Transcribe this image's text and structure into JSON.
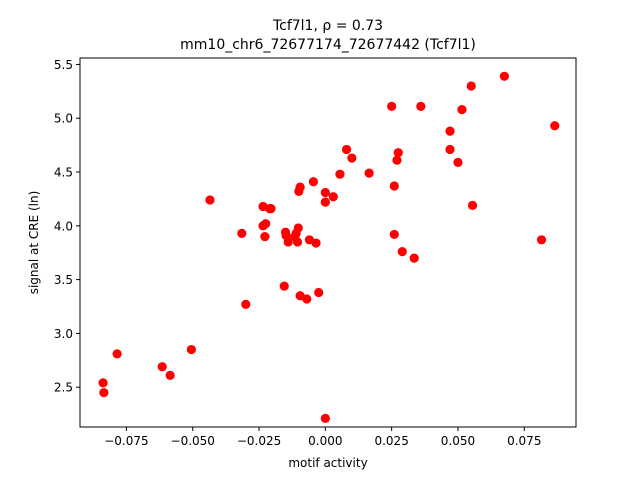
{
  "chart_data": {
    "type": "scatter",
    "title_line1": "Tcf7l1, ρ = 0.73",
    "title_line2": "mm10_chr6_72677174_72677442 (Tcf7l1)",
    "xlabel": "motif activity",
    "ylabel": "signal at CRE (ln)",
    "xlim": [
      -0.0925,
      0.0945
    ],
    "ylim": [
      2.13,
      5.56
    ],
    "xticks": [
      -0.075,
      -0.05,
      -0.025,
      0.0,
      0.025,
      0.05,
      0.075
    ],
    "xtick_labels": [
      "−0.075",
      "−0.050",
      "−0.025",
      "0.000",
      "0.025",
      "0.050",
      "0.075"
    ],
    "yticks": [
      2.5,
      3.0,
      3.5,
      4.0,
      4.5,
      5.0,
      5.5
    ],
    "ytick_labels": [
      "2.5",
      "3.0",
      "3.5",
      "4.0",
      "4.5",
      "5.0",
      "5.5"
    ],
    "marker_color": "#ff0000",
    "grid": false,
    "points": [
      {
        "x": -0.0838,
        "y": 2.54
      },
      {
        "x": -0.0835,
        "y": 2.45
      },
      {
        "x": -0.0785,
        "y": 2.81
      },
      {
        "x": -0.0615,
        "y": 2.69
      },
      {
        "x": -0.0585,
        "y": 2.61
      },
      {
        "x": -0.0505,
        "y": 2.85
      },
      {
        "x": -0.0435,
        "y": 4.24
      },
      {
        "x": -0.0315,
        "y": 3.93
      },
      {
        "x": -0.03,
        "y": 3.27
      },
      {
        "x": -0.0235,
        "y": 4.18
      },
      {
        "x": -0.0235,
        "y": 4.0
      },
      {
        "x": -0.0228,
        "y": 3.9
      },
      {
        "x": -0.0225,
        "y": 4.02
      },
      {
        "x": -0.021,
        "y": 4.16
      },
      {
        "x": -0.0205,
        "y": 4.16
      },
      {
        "x": -0.0155,
        "y": 3.44
      },
      {
        "x": -0.015,
        "y": 3.94
      },
      {
        "x": -0.0148,
        "y": 3.91
      },
      {
        "x": -0.014,
        "y": 3.85
      },
      {
        "x": -0.0115,
        "y": 3.9
      },
      {
        "x": -0.011,
        "y": 3.93
      },
      {
        "x": -0.0105,
        "y": 3.85
      },
      {
        "x": -0.0102,
        "y": 3.98
      },
      {
        "x": -0.01,
        "y": 4.32
      },
      {
        "x": -0.0095,
        "y": 4.36
      },
      {
        "x": -0.0095,
        "y": 3.35
      },
      {
        "x": -0.007,
        "y": 3.32
      },
      {
        "x": -0.006,
        "y": 3.87
      },
      {
        "x": -0.0045,
        "y": 4.41
      },
      {
        "x": -0.0035,
        "y": 3.84
      },
      {
        "x": -0.0025,
        "y": 3.38
      },
      {
        "x": 0.0,
        "y": 4.31
      },
      {
        "x": 0.0,
        "y": 4.22
      },
      {
        "x": 0.0,
        "y": 2.21
      },
      {
        "x": 0.003,
        "y": 4.27
      },
      {
        "x": 0.0055,
        "y": 4.48
      },
      {
        "x": 0.008,
        "y": 4.71
      },
      {
        "x": 0.01,
        "y": 4.63
      },
      {
        "x": 0.0165,
        "y": 4.49
      },
      {
        "x": 0.025,
        "y": 5.11
      },
      {
        "x": 0.026,
        "y": 4.37
      },
      {
        "x": 0.026,
        "y": 3.92
      },
      {
        "x": 0.027,
        "y": 4.61
      },
      {
        "x": 0.0275,
        "y": 4.68
      },
      {
        "x": 0.029,
        "y": 3.76
      },
      {
        "x": 0.0335,
        "y": 3.7
      },
      {
        "x": 0.036,
        "y": 5.11
      },
      {
        "x": 0.047,
        "y": 4.88
      },
      {
        "x": 0.047,
        "y": 4.71
      },
      {
        "x": 0.05,
        "y": 4.59
      },
      {
        "x": 0.0515,
        "y": 5.08
      },
      {
        "x": 0.055,
        "y": 5.3
      },
      {
        "x": 0.0555,
        "y": 4.19
      },
      {
        "x": 0.0675,
        "y": 5.39
      },
      {
        "x": 0.0815,
        "y": 3.87
      },
      {
        "x": 0.0865,
        "y": 4.93
      }
    ]
  }
}
